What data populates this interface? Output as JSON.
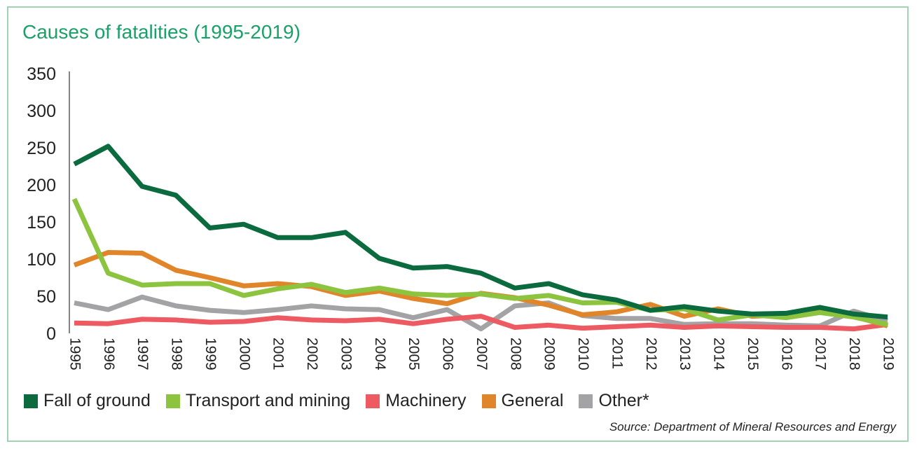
{
  "title": "Causes of fatalities (1995-2019)",
  "source": "Source: Department of Mineral Resources and Energy",
  "chart_data": {
    "type": "line",
    "title": "Causes of fatalities (1995-2019)",
    "xlabel": "",
    "ylabel": "",
    "ylim": [
      0,
      350
    ],
    "yticks": [
      "0",
      "50",
      "100",
      "150",
      "200",
      "250",
      "300",
      "350"
    ],
    "grid": false,
    "legend_position": "bottom",
    "x": [
      "1995",
      "1996",
      "1997",
      "1998",
      "1999",
      "2000",
      "2001",
      "2002",
      "2003",
      "2004",
      "2005",
      "2006",
      "2007",
      "2008",
      "2009",
      "2010",
      "2011",
      "2012",
      "2013",
      "2014",
      "2015",
      "2016",
      "2017",
      "2018",
      "2019"
    ],
    "series": [
      {
        "name": "Fall of ground",
        "color": "#0b6b3f",
        "values": [
          228,
          252,
          198,
          186,
          142,
          147,
          129,
          129,
          136,
          101,
          88,
          90,
          81,
          61,
          67,
          52,
          45,
          31,
          36,
          30,
          26,
          27,
          35,
          26,
          22
        ]
      },
      {
        "name": "Transport and mining",
        "color": "#8cc43f",
        "values": [
          181,
          81,
          65,
          67,
          67,
          51,
          60,
          66,
          55,
          61,
          53,
          51,
          53,
          47,
          51,
          41,
          42,
          31,
          33,
          18,
          25,
          21,
          28,
          22,
          12
        ]
      },
      {
        "name": "Machinery",
        "color": "#ee5a62",
        "values": [
          14,
          13,
          19,
          18,
          15,
          16,
          21,
          18,
          17,
          19,
          13,
          19,
          23,
          8,
          11,
          7,
          9,
          11,
          8,
          10,
          9,
          8,
          8,
          6,
          12
        ]
      },
      {
        "name": "General",
        "color": "#e0852a",
        "values": [
          92,
          109,
          108,
          85,
          75,
          64,
          67,
          63,
          51,
          57,
          47,
          40,
          54,
          48,
          38,
          25,
          29,
          39,
          23,
          33,
          23,
          25,
          30,
          23,
          10
        ]
      },
      {
        "name": "Other*",
        "color": "#a3a3a5",
        "values": [
          41,
          32,
          49,
          37,
          31,
          28,
          32,
          37,
          33,
          32,
          21,
          32,
          6,
          37,
          41,
          24,
          20,
          20,
          12,
          13,
          13,
          11,
          10,
          30,
          17
        ]
      }
    ]
  }
}
